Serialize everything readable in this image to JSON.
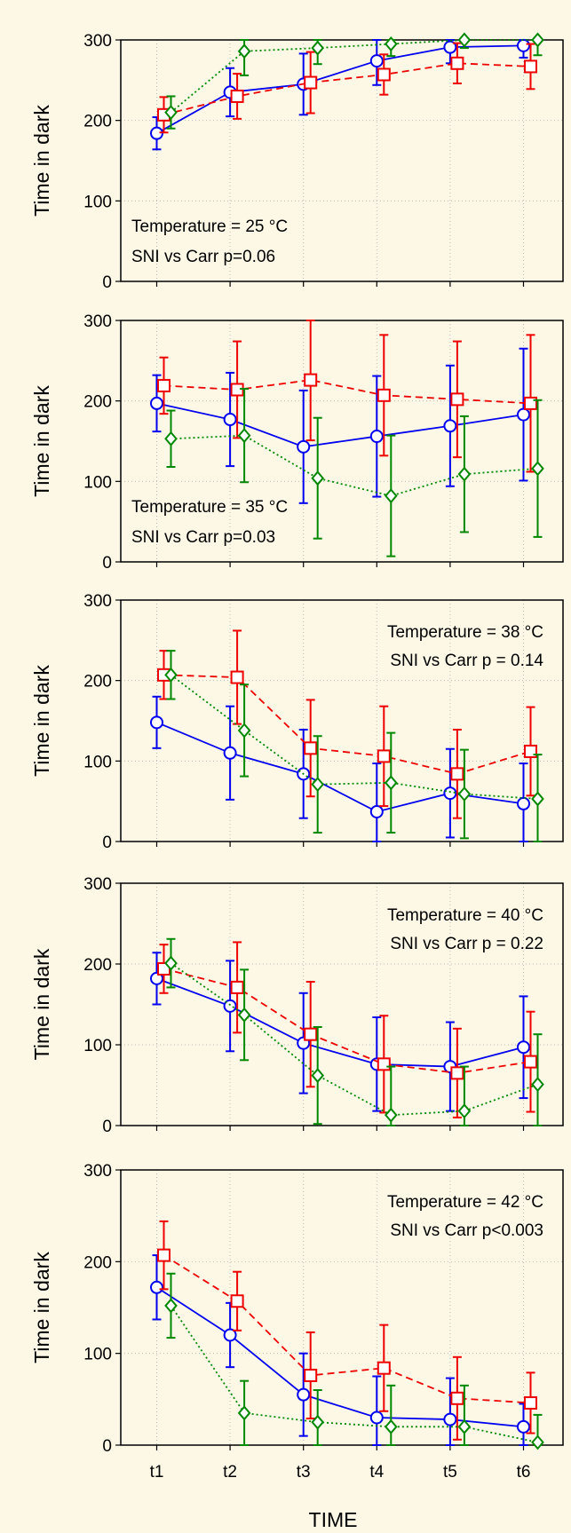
{
  "chart_data": [
    {
      "type": "line",
      "ylabel": "Time in dark",
      "xlabel": "",
      "ylim": [
        0,
        300
      ],
      "yticks": [
        "0",
        "100",
        "200",
        "300"
      ],
      "categories": [
        "t1",
        "t2",
        "t3",
        "t4",
        "t5",
        "t6"
      ],
      "show_x_ticklabels": false,
      "grid": true,
      "annotation_lines": [
        "Temperature = 25 °C",
        "SNI vs Carr p=0.06"
      ],
      "annotation_position": "bottom-left",
      "series": [
        {
          "color": "#0000ee",
          "marker": "circle",
          "dash": "solid",
          "values": [
            184,
            235,
            245,
            274,
            291,
            293
          ],
          "err": [
            20,
            30,
            38,
            30,
            20,
            15
          ]
        },
        {
          "color": "#ee0000",
          "marker": "square",
          "dash": "dashed",
          "values": [
            207,
            230,
            247,
            257,
            271,
            267
          ],
          "err": [
            22,
            28,
            38,
            25,
            25,
            28
          ]
        },
        {
          "color": "#008800",
          "marker": "diamond",
          "dash": "dotted",
          "values": [
            210,
            286,
            290,
            295,
            300,
            301
          ],
          "err": [
            20,
            30,
            20,
            15,
            10,
            20
          ]
        }
      ]
    },
    {
      "type": "line",
      "ylabel": "Time in dark",
      "xlabel": "",
      "ylim": [
        0,
        300
      ],
      "yticks": [
        "0",
        "100",
        "200",
        "300"
      ],
      "categories": [
        "t1",
        "t2",
        "t3",
        "t4",
        "t5",
        "t6"
      ],
      "show_x_ticklabels": false,
      "grid": true,
      "annotation_lines": [
        "Temperature = 35 °C",
        "SNI vs Carr p=0.03"
      ],
      "annotation_position": "bottom-left",
      "series": [
        {
          "color": "#0000ee",
          "marker": "circle",
          "dash": "solid",
          "values": [
            197,
            177,
            143,
            156,
            169,
            183
          ],
          "err": [
            35,
            58,
            70,
            75,
            75,
            82
          ]
        },
        {
          "color": "#ee0000",
          "marker": "square",
          "dash": "dashed",
          "values": [
            219,
            214,
            226,
            207,
            202,
            197
          ],
          "err": [
            35,
            60,
            75,
            75,
            72,
            85
          ]
        },
        {
          "color": "#008800",
          "marker": "diamond",
          "dash": "dotted",
          "values": [
            153,
            157,
            104,
            82,
            109,
            116
          ],
          "err": [
            35,
            58,
            75,
            75,
            72,
            85
          ]
        }
      ]
    },
    {
      "type": "line",
      "ylabel": "Time in dark",
      "xlabel": "",
      "ylim": [
        0,
        300
      ],
      "yticks": [
        "0",
        "100",
        "200",
        "300"
      ],
      "categories": [
        "t1",
        "t2",
        "t3",
        "t4",
        "t5",
        "t6"
      ],
      "show_x_ticklabels": false,
      "grid": true,
      "annotation_lines": [
        "Temperature = 38 °C",
        "SNI vs Carr p = 0.14"
      ],
      "annotation_position": "top-right",
      "series": [
        {
          "color": "#0000ee",
          "marker": "circle",
          "dash": "solid",
          "values": [
            148,
            110,
            84,
            37,
            60,
            47
          ],
          "err": [
            32,
            58,
            55,
            60,
            55,
            50
          ]
        },
        {
          "color": "#ee0000",
          "marker": "square",
          "dash": "dashed",
          "values": [
            207,
            204,
            116,
            106,
            84,
            112
          ],
          "err": [
            30,
            58,
            60,
            62,
            55,
            55
          ]
        },
        {
          "color": "#008800",
          "marker": "diamond",
          "dash": "dotted",
          "values": [
            207,
            138,
            71,
            73,
            59,
            53
          ],
          "err": [
            30,
            57,
            60,
            62,
            55,
            55
          ]
        }
      ]
    },
    {
      "type": "line",
      "ylabel": "Time in dark",
      "xlabel": "",
      "ylim": [
        0,
        300
      ],
      "yticks": [
        "0",
        "100",
        "200",
        "300"
      ],
      "categories": [
        "t1",
        "t2",
        "t3",
        "t4",
        "t5",
        "t6"
      ],
      "show_x_ticklabels": false,
      "grid": true,
      "annotation_lines": [
        "Temperature = 40 °C",
        "SNI vs Carr p = 0.22"
      ],
      "annotation_position": "top-right",
      "series": [
        {
          "color": "#0000ee",
          "marker": "circle",
          "dash": "solid",
          "values": [
            182,
            148,
            102,
            76,
            73,
            97
          ],
          "err": [
            32,
            56,
            62,
            58,
            55,
            63
          ]
        },
        {
          "color": "#ee0000",
          "marker": "square",
          "dash": "dashed",
          "values": [
            194,
            171,
            113,
            76,
            65,
            79
          ],
          "err": [
            30,
            56,
            65,
            60,
            55,
            62
          ]
        },
        {
          "color": "#008800",
          "marker": "diamond",
          "dash": "dotted",
          "values": [
            201,
            137,
            62,
            13,
            18,
            51
          ],
          "err": [
            30,
            56,
            60,
            60,
            55,
            62
          ]
        }
      ]
    },
    {
      "type": "line",
      "ylabel": "Time in dark",
      "xlabel": "TIME",
      "ylim": [
        0,
        300
      ],
      "yticks": [
        "0",
        "100",
        "200",
        "300"
      ],
      "categories": [
        "t1",
        "t2",
        "t3",
        "t4",
        "t5",
        "t6"
      ],
      "show_x_ticklabels": true,
      "grid": true,
      "annotation_lines": [
        "Temperature = 42 °C",
        "SNI vs Carr p<0.003"
      ],
      "annotation_position": "top-right",
      "series": [
        {
          "color": "#0000ee",
          "marker": "circle",
          "dash": "solid",
          "values": [
            172,
            120,
            55,
            30,
            28,
            20
          ],
          "err": [
            35,
            35,
            45,
            45,
            45,
            25
          ]
        },
        {
          "color": "#ee0000",
          "marker": "square",
          "dash": "dashed",
          "values": [
            207,
            157,
            76,
            84,
            51,
            46
          ],
          "err": [
            37,
            32,
            47,
            47,
            45,
            33
          ]
        },
        {
          "color": "#008800",
          "marker": "diamond",
          "dash": "dotted",
          "values": [
            152,
            35,
            25,
            20,
            20,
            3
          ],
          "err": [
            35,
            35,
            35,
            45,
            45,
            30
          ]
        }
      ]
    }
  ]
}
